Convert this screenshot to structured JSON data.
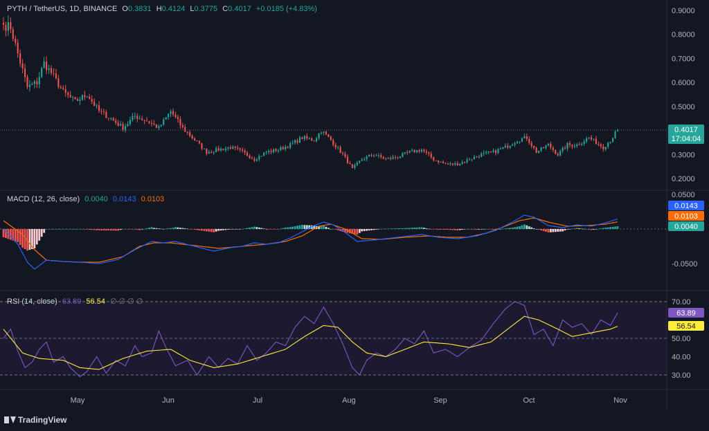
{
  "header": {
    "symbol": "PYTH / TetherUS, 1D, BINANCE",
    "o_label": "O",
    "o": "0.3831",
    "h_label": "H",
    "h": "0.4124",
    "l_label": "L",
    "l": "0.3775",
    "c_label": "C",
    "c": "0.4017",
    "change": "+0.0185 (+4.83%)"
  },
  "price_badge": {
    "value": "0.4017",
    "countdown": "17:04:04"
  },
  "macd_legend": {
    "title": "MACD (12, 26, close)",
    "hist": "0.0040",
    "macd": "0.0143",
    "signal": "0.0103"
  },
  "macd_badges": {
    "macd": "0.0143",
    "signal": "0.0103",
    "hist": "0.0040"
  },
  "rsi_legend": {
    "title": "RSI (14, close)",
    "rsi": "63.89",
    "ma": "56.54",
    "extra": "∅ ∅ ∅ ∅"
  },
  "rsi_badges": {
    "rsi": "63.89",
    "ma": "56.54"
  },
  "branding": {
    "name": "TradingView"
  },
  "colors": {
    "bg": "#131722",
    "up": "#26a69a",
    "down": "#ef5350",
    "macd": "#2962ff",
    "signal": "#ff6d00",
    "rsi": "#7e57c2",
    "rsi_ma": "#ffeb3b"
  },
  "chart_data": [
    {
      "type": "candlestick",
      "panel": "price",
      "y_axis_ticks": [
        "0.9000",
        "0.8000",
        "0.7000",
        "0.6000",
        "0.5000",
        "0.3000",
        "0.2000"
      ],
      "ylim": [
        0.17,
        0.93
      ],
      "x_ticks": [
        "May",
        "Jun",
        "Jul",
        "Aug",
        "Sep",
        "Oct",
        "Nov"
      ],
      "last_price": 0.4017,
      "anchors": [
        {
          "day": 0,
          "close": 0.84
        },
        {
          "day": 3,
          "close": 0.83
        },
        {
          "day": 6,
          "close": 0.72
        },
        {
          "day": 10,
          "close": 0.58
        },
        {
          "day": 14,
          "close": 0.6
        },
        {
          "day": 17,
          "close": 0.68
        },
        {
          "day": 20,
          "close": 0.64
        },
        {
          "day": 25,
          "close": 0.56
        },
        {
          "day": 30,
          "close": 0.52
        },
        {
          "day": 35,
          "close": 0.55
        },
        {
          "day": 40,
          "close": 0.48
        },
        {
          "day": 45,
          "close": 0.45
        },
        {
          "day": 50,
          "close": 0.41
        },
        {
          "day": 55,
          "close": 0.46
        },
        {
          "day": 60,
          "close": 0.44
        },
        {
          "day": 65,
          "close": 0.41
        },
        {
          "day": 70,
          "close": 0.48
        },
        {
          "day": 75,
          "close": 0.41
        },
        {
          "day": 80,
          "close": 0.36
        },
        {
          "day": 85,
          "close": 0.31
        },
        {
          "day": 90,
          "close": 0.32
        },
        {
          "day": 95,
          "close": 0.33
        },
        {
          "day": 100,
          "close": 0.31
        },
        {
          "day": 105,
          "close": 0.28
        },
        {
          "day": 110,
          "close": 0.31
        },
        {
          "day": 115,
          "close": 0.32
        },
        {
          "day": 120,
          "close": 0.34
        },
        {
          "day": 125,
          "close": 0.37
        },
        {
          "day": 130,
          "close": 0.36
        },
        {
          "day": 133,
          "close": 0.4
        },
        {
          "day": 137,
          "close": 0.36
        },
        {
          "day": 142,
          "close": 0.3
        },
        {
          "day": 146,
          "close": 0.24
        },
        {
          "day": 150,
          "close": 0.28
        },
        {
          "day": 155,
          "close": 0.3
        },
        {
          "day": 160,
          "close": 0.28
        },
        {
          "day": 165,
          "close": 0.29
        },
        {
          "day": 170,
          "close": 0.31
        },
        {
          "day": 175,
          "close": 0.32
        },
        {
          "day": 180,
          "close": 0.28
        },
        {
          "day": 185,
          "close": 0.26
        },
        {
          "day": 190,
          "close": 0.26
        },
        {
          "day": 195,
          "close": 0.28
        },
        {
          "day": 200,
          "close": 0.3
        },
        {
          "day": 205,
          "close": 0.31
        },
        {
          "day": 210,
          "close": 0.33
        },
        {
          "day": 215,
          "close": 0.36
        },
        {
          "day": 219,
          "close": 0.37
        },
        {
          "day": 223,
          "close": 0.31
        },
        {
          "day": 228,
          "close": 0.34
        },
        {
          "day": 232,
          "close": 0.3
        },
        {
          "day": 236,
          "close": 0.34
        },
        {
          "day": 240,
          "close": 0.34
        },
        {
          "day": 245,
          "close": 0.37
        },
        {
          "day": 248,
          "close": 0.35
        },
        {
          "day": 251,
          "close": 0.33
        },
        {
          "day": 254,
          "close": 0.36
        },
        {
          "day": 257,
          "close": 0.4017
        }
      ]
    },
    {
      "type": "line",
      "panel": "macd",
      "y_axis_ticks": [
        "0.0500",
        "-0.0500"
      ],
      "ylim": [
        -0.067,
        0.052
      ],
      "series": [
        {
          "name": "MACD",
          "anchors": [
            [
              0,
              0.0
            ],
            [
              6,
              -0.022
            ],
            [
              10,
              -0.048
            ],
            [
              13,
              -0.058
            ],
            [
              18,
              -0.045
            ],
            [
              25,
              -0.047
            ],
            [
              32,
              -0.048
            ],
            [
              40,
              -0.05
            ],
            [
              48,
              -0.044
            ],
            [
              55,
              -0.03
            ],
            [
              62,
              -0.018
            ],
            [
              67,
              -0.02
            ],
            [
              72,
              -0.018
            ],
            [
              80,
              -0.025
            ],
            [
              88,
              -0.032
            ],
            [
              95,
              -0.027
            ],
            [
              100,
              -0.025
            ],
            [
              105,
              -0.02
            ],
            [
              110,
              -0.022
            ],
            [
              115,
              -0.02
            ],
            [
              120,
              -0.013
            ],
            [
              125,
              -0.004
            ],
            [
              130,
              0.005
            ],
            [
              134,
              0.01
            ],
            [
              138,
              0.006
            ],
            [
              143,
              -0.005
            ],
            [
              148,
              -0.018
            ],
            [
              155,
              -0.016
            ],
            [
              165,
              -0.012
            ],
            [
              175,
              -0.008
            ],
            [
              182,
              -0.012
            ],
            [
              190,
              -0.014
            ],
            [
              198,
              -0.01
            ],
            [
              206,
              -0.002
            ],
            [
              213,
              0.01
            ],
            [
              218,
              0.02
            ],
            [
              222,
              0.017
            ],
            [
              228,
              0.005
            ],
            [
              234,
              0.002
            ],
            [
              240,
              0.006
            ],
            [
              246,
              0.004
            ],
            [
              252,
              0.009
            ],
            [
              257,
              0.0143
            ]
          ]
        },
        {
          "name": "Signal",
          "anchors": [
            [
              0,
              0.012
            ],
            [
              8,
              -0.008
            ],
            [
              13,
              -0.03
            ],
            [
              18,
              -0.045
            ],
            [
              25,
              -0.047
            ],
            [
              32,
              -0.048
            ],
            [
              40,
              -0.048
            ],
            [
              50,
              -0.04
            ],
            [
              57,
              -0.025
            ],
            [
              63,
              -0.02
            ],
            [
              70,
              -0.02
            ],
            [
              80,
              -0.024
            ],
            [
              90,
              -0.028
            ],
            [
              100,
              -0.025
            ],
            [
              110,
              -0.022
            ],
            [
              118,
              -0.018
            ],
            [
              125,
              -0.01
            ],
            [
              132,
              0.004
            ],
            [
              137,
              0.007
            ],
            [
              143,
              0.0
            ],
            [
              150,
              -0.014
            ],
            [
              158,
              -0.015
            ],
            [
              168,
              -0.012
            ],
            [
              178,
              -0.01
            ],
            [
              186,
              -0.012
            ],
            [
              194,
              -0.012
            ],
            [
              202,
              -0.006
            ],
            [
              210,
              0.004
            ],
            [
              216,
              0.012
            ],
            [
              222,
              0.016
            ],
            [
              228,
              0.01
            ],
            [
              236,
              0.004
            ],
            [
              244,
              0.005
            ],
            [
              252,
              0.007
            ],
            [
              257,
              0.0103
            ]
          ]
        },
        {
          "name": "Histogram",
          "values_from": "MACD minus Signal",
          "last": 0.004
        }
      ],
      "zero_line": 0
    },
    {
      "type": "line",
      "panel": "rsi",
      "y_axis_ticks": [
        "70.00",
        "50.00",
        "40.00",
        "30.00"
      ],
      "ylim": [
        23,
        73
      ],
      "bands": [
        30,
        70
      ],
      "series": [
        {
          "name": "RSI",
          "anchors": [
            [
              0,
              50
            ],
            [
              3,
              55
            ],
            [
              6,
              43
            ],
            [
              9,
              34
            ],
            [
              12,
              37
            ],
            [
              15,
              44
            ],
            [
              18,
              48
            ],
            [
              21,
              37
            ],
            [
              25,
              40
            ],
            [
              28,
              34
            ],
            [
              32,
              29
            ],
            [
              35,
              32
            ],
            [
              39,
              40
            ],
            [
              43,
              31
            ],
            [
              47,
              38
            ],
            [
              51,
              35
            ],
            [
              55,
              46
            ],
            [
              58,
              40
            ],
            [
              62,
              42
            ],
            [
              65,
              54
            ],
            [
              68,
              45
            ],
            [
              72,
              35
            ],
            [
              77,
              38
            ],
            [
              81,
              30
            ],
            [
              86,
              40
            ],
            [
              90,
              34
            ],
            [
              94,
              39
            ],
            [
              98,
              36
            ],
            [
              102,
              46
            ],
            [
              106,
              38
            ],
            [
              110,
              42
            ],
            [
              114,
              48
            ],
            [
              118,
              46
            ],
            [
              122,
              56
            ],
            [
              126,
              62
            ],
            [
              130,
              58
            ],
            [
              134,
              67
            ],
            [
              138,
              58
            ],
            [
              142,
              47
            ],
            [
              146,
              34
            ],
            [
              149,
              30
            ],
            [
              152,
              38
            ],
            [
              156,
              42
            ],
            [
              160,
              40
            ],
            [
              164,
              44
            ],
            [
              168,
              50
            ],
            [
              172,
              47
            ],
            [
              176,
              54
            ],
            [
              180,
              42
            ],
            [
              185,
              44
            ],
            [
              190,
              40
            ],
            [
              195,
              45
            ],
            [
              200,
              49
            ],
            [
              205,
              58
            ],
            [
              210,
              66
            ],
            [
              214,
              70
            ],
            [
              218,
              68
            ],
            [
              222,
              52
            ],
            [
              226,
              55
            ],
            [
              230,
              46
            ],
            [
              234,
              60
            ],
            [
              238,
              56
            ],
            [
              242,
              58
            ],
            [
              246,
              52
            ],
            [
              250,
              60
            ],
            [
              254,
              57
            ],
            [
              257,
              63.89
            ]
          ]
        },
        {
          "name": "RSI MA",
          "anchors": [
            [
              0,
              55
            ],
            [
              8,
              42
            ],
            [
              15,
              39
            ],
            [
              25,
              38
            ],
            [
              32,
              34
            ],
            [
              40,
              33
            ],
            [
              50,
              39
            ],
            [
              60,
              43
            ],
            [
              70,
              44
            ],
            [
              78,
              38
            ],
            [
              88,
              34
            ],
            [
              98,
              36
            ],
            [
              108,
              40
            ],
            [
              118,
              44
            ],
            [
              126,
              51
            ],
            [
              134,
              57
            ],
            [
              140,
              56
            ],
            [
              146,
              48
            ],
            [
              152,
              42
            ],
            [
              160,
              40
            ],
            [
              168,
              44
            ],
            [
              176,
              48
            ],
            [
              186,
              47
            ],
            [
              195,
              45
            ],
            [
              204,
              48
            ],
            [
              212,
              56
            ],
            [
              218,
              62
            ],
            [
              224,
              60
            ],
            [
              232,
              55
            ],
            [
              238,
              51
            ],
            [
              246,
              53
            ],
            [
              254,
              55
            ],
            [
              257,
              56.54
            ]
          ]
        }
      ]
    }
  ]
}
